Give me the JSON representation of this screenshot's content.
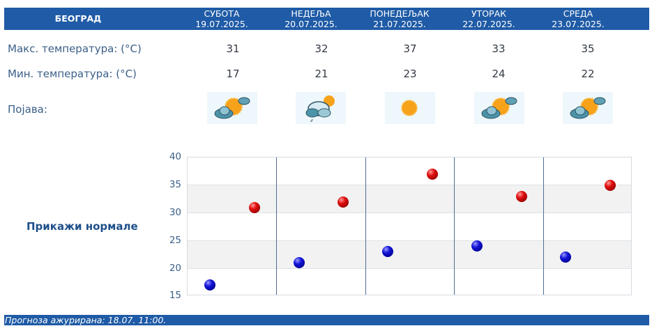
{
  "header": {
    "city": "БЕОГРАД",
    "days": [
      {
        "name": "СУБОТА",
        "date": "19.07.2025."
      },
      {
        "name": "НЕДЕЉА",
        "date": "20.07.2025."
      },
      {
        "name": "ПОНЕДЕЉАК",
        "date": "21.07.2025."
      },
      {
        "name": "УТОРАК",
        "date": "22.07.2025."
      },
      {
        "name": "СРЕДА",
        "date": "23.07.2025."
      }
    ]
  },
  "rows": {
    "max_label": "Макс. температура: (°C)",
    "min_label": "Мин. температура: (°C)",
    "phenomenon_label": "Појава:",
    "max": [
      "31",
      "32",
      "37",
      "33",
      "35"
    ],
    "min": [
      "17",
      "21",
      "23",
      "24",
      "22"
    ],
    "icons": [
      "partly-cloudy-sun-icon",
      "cloudy-light-rain-icon",
      "sunny-icon",
      "partly-cloudy-sun-icon",
      "partly-cloudy-sun-icon"
    ]
  },
  "normals_link": "Прикажи нормале",
  "footer": {
    "updated": "Прогноза ажурирана:  18.07. 11:00."
  },
  "colors": {
    "brand_blue": "#1f5ba6",
    "max_dot": "#d01010",
    "min_dot": "#1010c8",
    "label_text": "#3a5f88"
  },
  "chart_data": {
    "type": "scatter",
    "title": "",
    "xlabel": "",
    "ylabel": "",
    "categories": [
      "19.07.2025.",
      "20.07.2025.",
      "21.07.2025.",
      "22.07.2025.",
      "23.07.2025."
    ],
    "series": [
      {
        "name": "Мин. температура",
        "color": "#1010c8",
        "values": [
          17,
          21,
          23,
          24,
          22
        ]
      },
      {
        "name": "Макс. температура",
        "color": "#d01010",
        "values": [
          31,
          32,
          37,
          33,
          35
        ]
      }
    ],
    "ylim": [
      15,
      40
    ],
    "yticks": [
      40,
      35,
      30,
      25,
      20,
      15
    ],
    "grid": true,
    "alternating_bands": true
  }
}
